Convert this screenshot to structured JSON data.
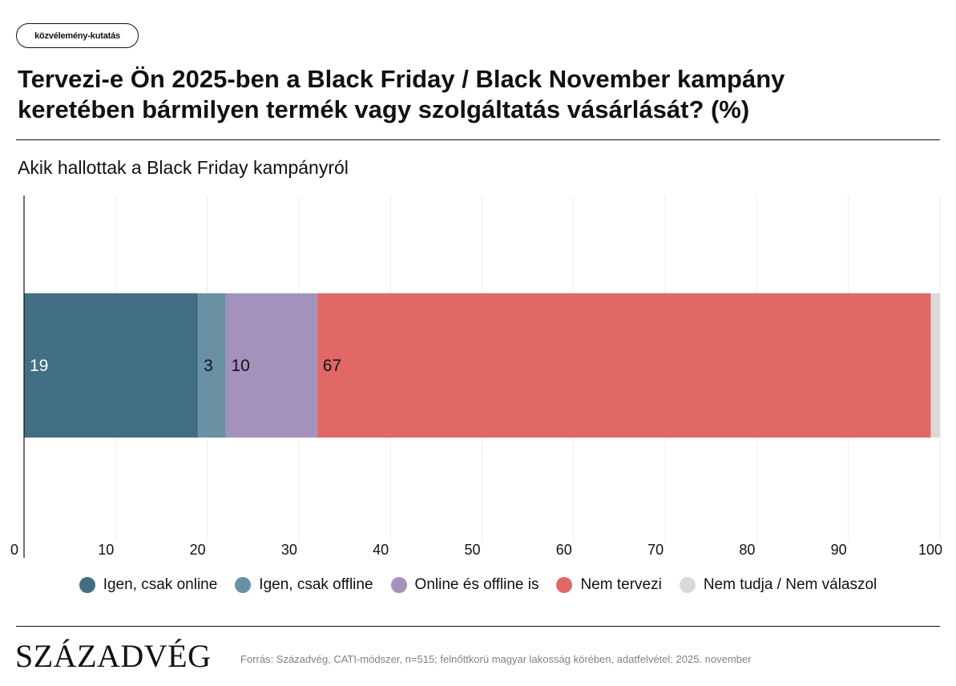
{
  "header": {
    "tag": "közvélemény-kutatás",
    "title": "Tervezi-e Ön 2025-ben a Black Friday / Black November kampány keretében bármilyen termék vagy szolgáltatás vásárlását? (%)",
    "subtitle": "Akik hallottak a Black Friday kampányról"
  },
  "footer": {
    "logo": "SZÁZADVÉG",
    "source": "Forrás: Századvég, CATI-módszer, n=515; felnőttkorú magyar lakosság körében, adatfelvétel: 2025. november"
  },
  "chart_data": {
    "type": "bar",
    "orientation": "horizontal",
    "stacked": true,
    "categories": [
      ""
    ],
    "xlim": [
      0,
      100
    ],
    "xticks": [
      "0",
      "10",
      "20",
      "30",
      "40",
      "50",
      "60",
      "70",
      "80",
      "90",
      "100"
    ],
    "grid": true,
    "legend_position": "bottom",
    "series": [
      {
        "name": "Igen, csak online",
        "values": [
          19
        ],
        "label": "19",
        "color": "#426f84",
        "label_color": "#ffffff"
      },
      {
        "name": "Igen, csak offline",
        "values": [
          3
        ],
        "label": "3",
        "color": "#6a90a4",
        "label_color": "#111111"
      },
      {
        "name": "Online és offline is",
        "values": [
          10
        ],
        "label": "10",
        "color": "#a393bc",
        "label_color": "#111111"
      },
      {
        "name": "Nem tervezi",
        "values": [
          67
        ],
        "label": "67",
        "color": "#e26866",
        "label_color": "#111111"
      },
      {
        "name": "Nem tudja / Nem válaszol",
        "values": [
          1
        ],
        "label": "",
        "color": "#d9d9d9",
        "label_color": "#111111"
      }
    ]
  }
}
